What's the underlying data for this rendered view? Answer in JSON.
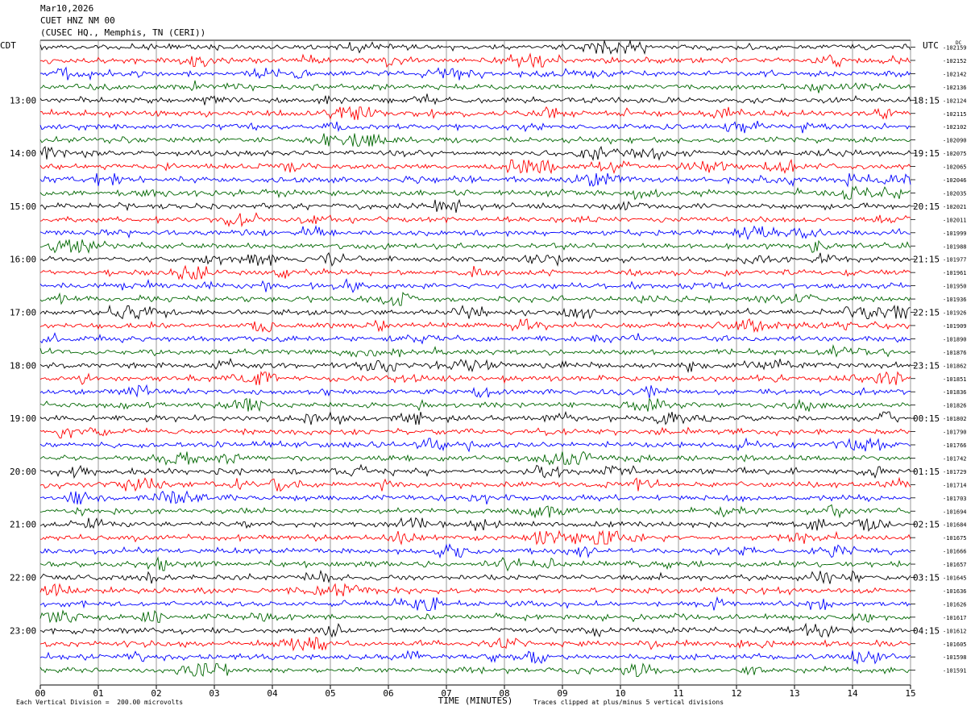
{
  "header": {
    "date": "Mar10,2026",
    "station": "CUET HNZ NM 00",
    "location": "(CUSEC HQ., Memphis, TN (CERI))"
  },
  "chart_data": {
    "type": "line",
    "title": "CUET HNZ NM 00",
    "left_timezone": "CDT",
    "right_timezone": "UTC",
    "dc_label": "DC",
    "xlabel": "TIME (MINUTES)",
    "x_ticks": [
      "00",
      "01",
      "02",
      "03",
      "04",
      "05",
      "06",
      "07",
      "08",
      "09",
      "10",
      "11",
      "12",
      "13",
      "14",
      "15"
    ],
    "xlim": [
      0,
      15
    ],
    "trace_minutes": 15,
    "trace_colors": [
      "#000000",
      "#ff0000",
      "#0000ff",
      "#006600"
    ],
    "left_hour_labels": [
      "13:00",
      "14:00",
      "15:00",
      "16:00",
      "17:00",
      "18:00",
      "19:00",
      "20:00",
      "21:00",
      "22:00",
      "23:00"
    ],
    "right_hour_labels": [
      "18:15",
      "19:15",
      "20:15",
      "21:15",
      "22:15",
      "23:15",
      "00:15",
      "01:15",
      "02:15",
      "03:15",
      "04:15"
    ],
    "dc_offsets": [
      "-102159",
      "-102152",
      "-102142",
      "-102136",
      "-102124",
      "-102115",
      "-102102",
      "-102090",
      "-102075",
      "-102065",
      "-102046",
      "-102035",
      "-102021",
      "-102011",
      "-101999",
      "-101988",
      "-101977",
      "-101961",
      "-101950",
      "-101936",
      "-101926",
      "-101909",
      "-101890",
      "-101876",
      "-101862",
      "-101851",
      "-101836",
      "-101826",
      "-101802",
      "-101790",
      "-101766",
      "-101742",
      "-101729",
      "-101714",
      "-101703",
      "-101694",
      "-101684",
      "-101675",
      "-101666",
      "-101657",
      "-101645",
      "-101636",
      "-101626",
      "-101617",
      "-101612",
      "-101605",
      "-101598",
      "-101591"
    ],
    "scale_note": "Each Vertical Division =  200.00 microvolts",
    "clip_note": "Traces clipped at plus/minus 5 vertical divisions"
  }
}
